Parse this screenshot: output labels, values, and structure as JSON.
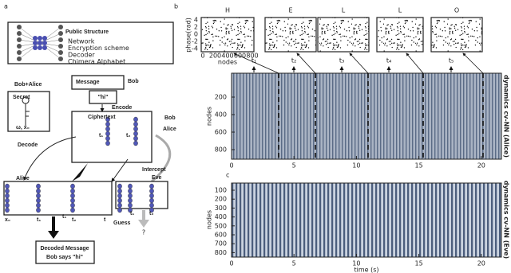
{
  "panel_labels": [
    "a",
    "b",
    "c"
  ],
  "panel_a": {
    "public_structure": {
      "title": "Public Structure",
      "items": [
        "Network",
        "Encryption scheme",
        "Decoder",
        "Chimera Alphabet"
      ]
    },
    "bob_alice": "Bob+Alice",
    "secret": {
      "title": "Secret",
      "vars": "ω, x₀"
    },
    "message": {
      "title": "Message",
      "sender": "Bob",
      "text": "\"hi\""
    },
    "encode": "Encode",
    "ciphertext": {
      "title": "Ciphertext",
      "t1": "t₁",
      "t2": "t₂"
    },
    "parties": [
      "Bob",
      "Alice"
    ],
    "decode": "Decode",
    "alice": "Alice",
    "intercept": "Intercept",
    "eve": "Eve",
    "row_labels": [
      "x₀",
      "t₁",
      "t₁",
      "t₂",
      "t"
    ],
    "guess": "Guess",
    "eve_labels": [
      "t₁",
      "t₂"
    ],
    "unknown": "?",
    "decoded": {
      "title": "Decoded Message",
      "text": "Bob says \"hi\""
    }
  },
  "panel_b": {
    "letters": [
      "H",
      "E",
      "L",
      "L",
      "O"
    ],
    "phase_label": "phase(rad)",
    "phase_ticks": [
      "4",
      "2",
      "0",
      "-2",
      "-4"
    ],
    "node_ticks": [
      "0",
      "200",
      "400",
      "600",
      "800"
    ],
    "node_label": "nodes",
    "times": [
      "t₁",
      "t₂",
      "t₃",
      "t₄",
      "t₅"
    ],
    "y_label": "nodes",
    "y_ticks": [
      "200",
      "400",
      "600",
      "800"
    ],
    "x_ticks": [
      "0",
      "5",
      "10",
      "15",
      "20"
    ],
    "side_label": "dynamics cv-NN (Alice)"
  },
  "panel_c": {
    "y_label": "nodes",
    "y_ticks": [
      "100",
      "200",
      "300",
      "400",
      "500",
      "600",
      "700",
      "800"
    ],
    "x_ticks": [
      "0",
      "5",
      "10",
      "15",
      "20"
    ],
    "x_label": "time (s)",
    "side_label": "dynamics cv-NN (Eve)"
  }
}
